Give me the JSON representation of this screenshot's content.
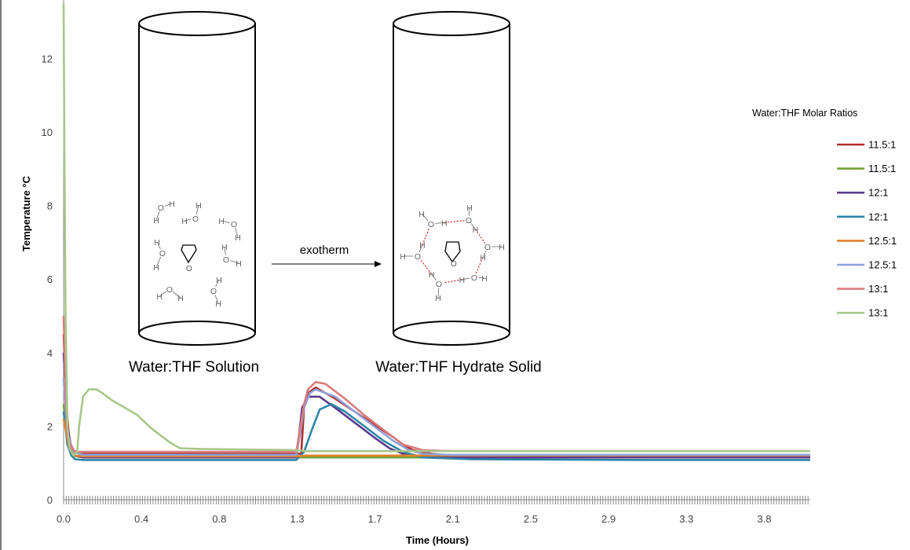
{
  "chart_data": {
    "type": "line",
    "xlabel": "Time (Hours)",
    "ylabel": "Temperature °C",
    "xlim": [
      0,
      3.85
    ],
    "ylim": [
      0,
      13
    ],
    "x_ticks": [
      "0.0",
      "0.4",
      "0.8",
      "1.3",
      "1.7",
      "2.1",
      "2.5",
      "2.9",
      "3.3",
      "3.8"
    ],
    "y_ticks": [
      "0",
      "2",
      "4",
      "6",
      "8",
      "10",
      "12"
    ],
    "legend_title": "Water:THF Molar Ratios",
    "legend_position": "right",
    "grid": false,
    "series": [
      {
        "name": "11.5:1",
        "color": "#b22d2d",
        "x": [
          0,
          0.01,
          0.02,
          0.03,
          0.05,
          0.08,
          0.15,
          0.3,
          0.6,
          0.9,
          1.2,
          1.225,
          1.24,
          1.26,
          1.3,
          1.4,
          1.5,
          1.6,
          1.7,
          1.75,
          1.8,
          1.9,
          2.0,
          2.1,
          3.5,
          3.85
        ],
        "y": [
          4.5,
          3.2,
          2.2,
          1.6,
          1.35,
          1.25,
          1.25,
          1.25,
          1.25,
          1.25,
          1.25,
          1.25,
          2.5,
          2.9,
          3.05,
          2.75,
          2.4,
          2.05,
          1.7,
          1.5,
          1.35,
          1.25,
          1.2,
          1.2,
          1.2,
          1.2
        ]
      },
      {
        "name": "11.5:1",
        "color": "#77a037",
        "x": [
          0,
          0.02,
          0.05,
          0.1,
          1.2,
          1.25,
          2.1,
          3.85
        ],
        "y": [
          2.6,
          1.5,
          1.2,
          1.15,
          1.15,
          1.15,
          1.15,
          1.15
        ]
      },
      {
        "name": "12:1",
        "color": "#5b3a8e",
        "x": [
          0,
          0.02,
          0.04,
          0.06,
          0.1,
          0.5,
          1.0,
          1.2,
          1.215,
          1.23,
          1.26,
          1.32,
          1.4,
          1.5,
          1.6,
          1.68,
          1.75,
          1.82,
          1.9,
          2.1,
          3.85
        ],
        "y": [
          4.0,
          2.0,
          1.4,
          1.2,
          1.15,
          1.15,
          1.15,
          1.15,
          1.8,
          2.5,
          2.8,
          2.8,
          2.5,
          2.1,
          1.7,
          1.4,
          1.25,
          1.2,
          1.15,
          1.15,
          1.15
        ]
      },
      {
        "name": "12:1",
        "color": "#2e86a8",
        "x": [
          0,
          0.02,
          0.04,
          0.06,
          0.1,
          0.3,
          0.6,
          1.0,
          1.2,
          1.24,
          1.28,
          1.32,
          1.38,
          1.45,
          1.55,
          1.65,
          1.75,
          1.85,
          2.1,
          3.0,
          3.85
        ],
        "y": [
          2.4,
          1.5,
          1.2,
          1.1,
          1.08,
          1.08,
          1.08,
          1.08,
          1.08,
          1.3,
          1.9,
          2.45,
          2.6,
          2.4,
          2.0,
          1.6,
          1.3,
          1.15,
          1.1,
          1.08,
          1.08
        ]
      },
      {
        "name": "12.5:1",
        "color": "#e0812e",
        "x": [
          0,
          0.03,
          0.06,
          0.1,
          0.5,
          1.0,
          1.2,
          1.25,
          1.3,
          2.1,
          3.85
        ],
        "y": [
          2.2,
          1.4,
          1.2,
          1.18,
          1.18,
          1.18,
          1.18,
          1.2,
          1.2,
          1.2,
          1.2
        ]
      },
      {
        "name": "12.5:1",
        "color": "#8ea3d8",
        "x": [
          0,
          0.02,
          0.05,
          0.1,
          0.5,
          1.0,
          1.2,
          1.22,
          1.24,
          1.27,
          1.3,
          1.4,
          1.5,
          1.6,
          1.7,
          1.78,
          1.85,
          2.0,
          3.85
        ],
        "y": [
          3.3,
          1.8,
          1.3,
          1.22,
          1.22,
          1.22,
          1.22,
          1.8,
          2.5,
          2.9,
          3.0,
          2.8,
          2.4,
          2.0,
          1.6,
          1.35,
          1.25,
          1.22,
          1.22
        ]
      },
      {
        "name": "13:1",
        "color": "#d97c7c",
        "x": [
          0,
          0.01,
          0.02,
          0.04,
          0.06,
          0.1,
          0.5,
          1.0,
          1.2,
          1.24,
          1.26,
          1.3,
          1.35,
          1.45,
          1.55,
          1.65,
          1.75,
          1.85,
          2.0,
          3.85
        ],
        "y": [
          5.0,
          3.0,
          1.8,
          1.4,
          1.3,
          1.3,
          1.3,
          1.3,
          1.3,
          2.6,
          3.0,
          3.2,
          3.15,
          2.75,
          2.3,
          1.9,
          1.5,
          1.35,
          1.32,
          1.32
        ]
      },
      {
        "name": "13:1",
        "color": "#a8c78a",
        "x": [
          0,
          0.005,
          0.01,
          0.02,
          0.03,
          0.05,
          0.07,
          0.08,
          0.1,
          0.13,
          0.17,
          0.2,
          0.25,
          0.3,
          0.38,
          0.45,
          0.5,
          0.55,
          0.6,
          0.7,
          1.0,
          1.2,
          1.25,
          2.1,
          3.85
        ],
        "y": [
          13.5,
          9.0,
          5.0,
          2.0,
          1.4,
          1.2,
          1.3,
          2.0,
          2.8,
          3.0,
          3.0,
          2.9,
          2.7,
          2.55,
          2.3,
          1.95,
          1.75,
          1.55,
          1.4,
          1.38,
          1.36,
          1.35,
          1.32,
          1.32,
          1.32
        ]
      }
    ]
  },
  "diagram": {
    "solution_label": "Water:THF Solution",
    "hydrate_label": "Water:THF Hydrate Solid",
    "arrow_label": "exotherm",
    "h": "H",
    "o": "O"
  }
}
